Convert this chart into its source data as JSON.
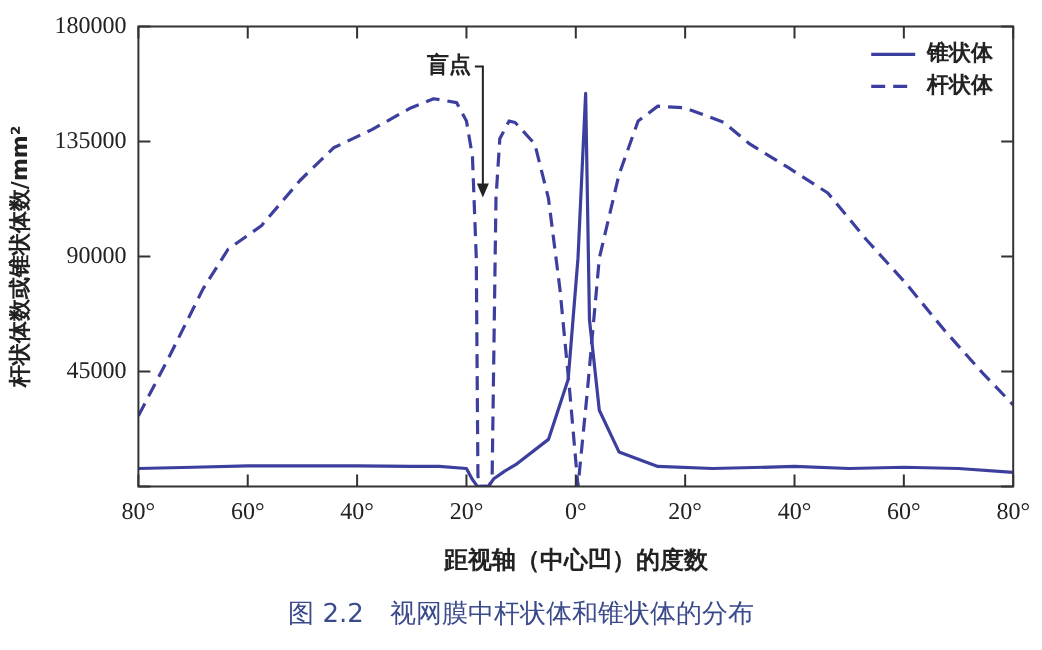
{
  "chart_data": {
    "type": "line",
    "xlabel": "距视轴（中心凹）的度数",
    "ylabel": "杆状体数或锥状体数/mm²",
    "xlim": [
      -80,
      80
    ],
    "xticks": [
      {
        "value": -80,
        "label": "80°"
      },
      {
        "value": -60,
        "label": "60°"
      },
      {
        "value": -40,
        "label": "40°"
      },
      {
        "value": -20,
        "label": "20°"
      },
      {
        "value": 0,
        "label": "0°"
      },
      {
        "value": 20,
        "label": "20°"
      },
      {
        "value": 40,
        "label": "40°"
      },
      {
        "value": 60,
        "label": "60°"
      },
      {
        "value": 80,
        "label": "80°"
      }
    ],
    "ylim": [
      0,
      180000
    ],
    "yticks": [
      {
        "value": 0,
        "label": null
      },
      45000,
      90000,
      135000,
      180000
    ],
    "grid": false,
    "legend": "top right",
    "marker": "none",
    "annotations": [
      {
        "text": "盲点",
        "x": -17,
        "y": 113000
      },
      "图 2.2　视网膜中杆状体和锥状体的分布"
    ],
    "series": [
      {
        "name": "锥状体",
        "color": "#3c3f9e",
        "line_style": "solid",
        "x": [
          -80,
          -70,
          -60,
          -50,
          -40,
          -30,
          -25,
          -20,
          -19,
          -18,
          -16,
          -15,
          -13,
          -11,
          -5,
          -1.4,
          0.4,
          1.8,
          2.5,
          4.3,
          7.9,
          15,
          25,
          40,
          50,
          60,
          70,
          80
        ],
        "values": [
          7000,
          7500,
          8000,
          8000,
          8000,
          7800,
          7800,
          7000,
          3000,
          0,
          0,
          3000,
          6000,
          8500,
          18400,
          41800,
          89300,
          153800,
          65200,
          29800,
          13500,
          7800,
          7000,
          7800,
          7000,
          7500,
          7000,
          5500
        ]
      },
      {
        "name": "杆状体",
        "color": "#3c3f9e",
        "line_style": "dashed",
        "x": [
          -80,
          -74.3,
          -68.2,
          -63.6,
          -57.5,
          -50.4,
          -44.3,
          -37.3,
          -30.2,
          -26,
          -21.8,
          -20,
          -18.9,
          -18.2,
          -17.9,
          -17.5,
          -15.8,
          -15.3,
          -14.6,
          -13.9,
          -12.2,
          -11.1,
          -7.5,
          -5,
          -2.9,
          -1.1,
          0.4,
          2.1,
          4.3,
          7.9,
          11.4,
          15,
          20,
          27.1,
          31.8,
          38.9,
          46.1,
          53.2,
          60.4,
          67.5,
          74.6,
          80
        ],
        "values": [
          27600,
          51000,
          77200,
          92800,
          102000,
          119800,
          132500,
          139600,
          148100,
          151700,
          150200,
          143000,
          129000,
          89300,
          4000,
          0,
          0,
          4000,
          112700,
          136000,
          143000,
          142400,
          134000,
          112700,
          77200,
          36900,
          0,
          36900,
          89300,
          122000,
          143000,
          148800,
          148100,
          142400,
          134000,
          124700,
          114800,
          96400,
          79400,
          60900,
          43900,
          31900
        ]
      }
    ]
  }
}
